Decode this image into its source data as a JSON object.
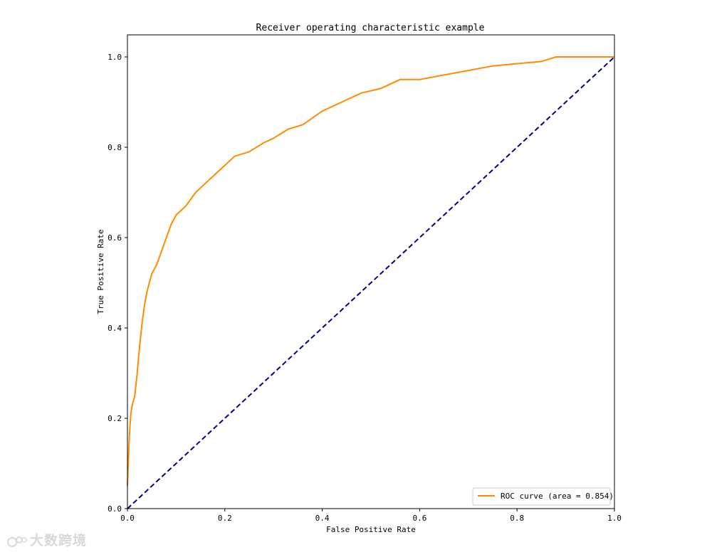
{
  "watermark": {
    "text": "大数跨境"
  },
  "chart_data": {
    "type": "line",
    "title": "Receiver operating characteristic example",
    "xlabel": "False Positive Rate",
    "ylabel": "True Positive Rate",
    "xlim": [
      0.0,
      1.0
    ],
    "ylim": [
      0.0,
      1.0
    ],
    "xticks": [
      "0.0",
      "0.2",
      "0.4",
      "0.6",
      "0.8",
      "1.0"
    ],
    "yticks": [
      "0.0",
      "0.2",
      "0.4",
      "0.6",
      "0.8",
      "1.0"
    ],
    "grid": false,
    "legend_position": "lower-right",
    "series": [
      {
        "name": "ROC curve (area = 0.854)",
        "color": "#ff8c00",
        "style": "solid",
        "x": [
          0.0,
          0.003,
          0.005,
          0.007,
          0.01,
          0.015,
          0.02,
          0.025,
          0.03,
          0.035,
          0.04,
          0.045,
          0.05,
          0.06,
          0.07,
          0.08,
          0.09,
          0.1,
          0.12,
          0.14,
          0.16,
          0.18,
          0.2,
          0.22,
          0.25,
          0.28,
          0.3,
          0.33,
          0.36,
          0.4,
          0.44,
          0.48,
          0.52,
          0.56,
          0.6,
          0.65,
          0.7,
          0.75,
          0.8,
          0.85,
          0.88,
          0.92,
          0.96,
          1.0
        ],
        "y": [
          0.05,
          0.14,
          0.18,
          0.21,
          0.23,
          0.25,
          0.3,
          0.36,
          0.41,
          0.45,
          0.48,
          0.5,
          0.52,
          0.54,
          0.57,
          0.6,
          0.63,
          0.65,
          0.67,
          0.7,
          0.72,
          0.74,
          0.76,
          0.78,
          0.79,
          0.81,
          0.82,
          0.84,
          0.85,
          0.88,
          0.9,
          0.92,
          0.93,
          0.95,
          0.95,
          0.96,
          0.97,
          0.98,
          0.985,
          0.99,
          1.0,
          1.0,
          1.0,
          1.0
        ]
      },
      {
        "name": "",
        "color": "#000080",
        "style": "dashed",
        "x": [
          0.0,
          1.0
        ],
        "y": [
          0.0,
          1.0
        ]
      }
    ]
  }
}
